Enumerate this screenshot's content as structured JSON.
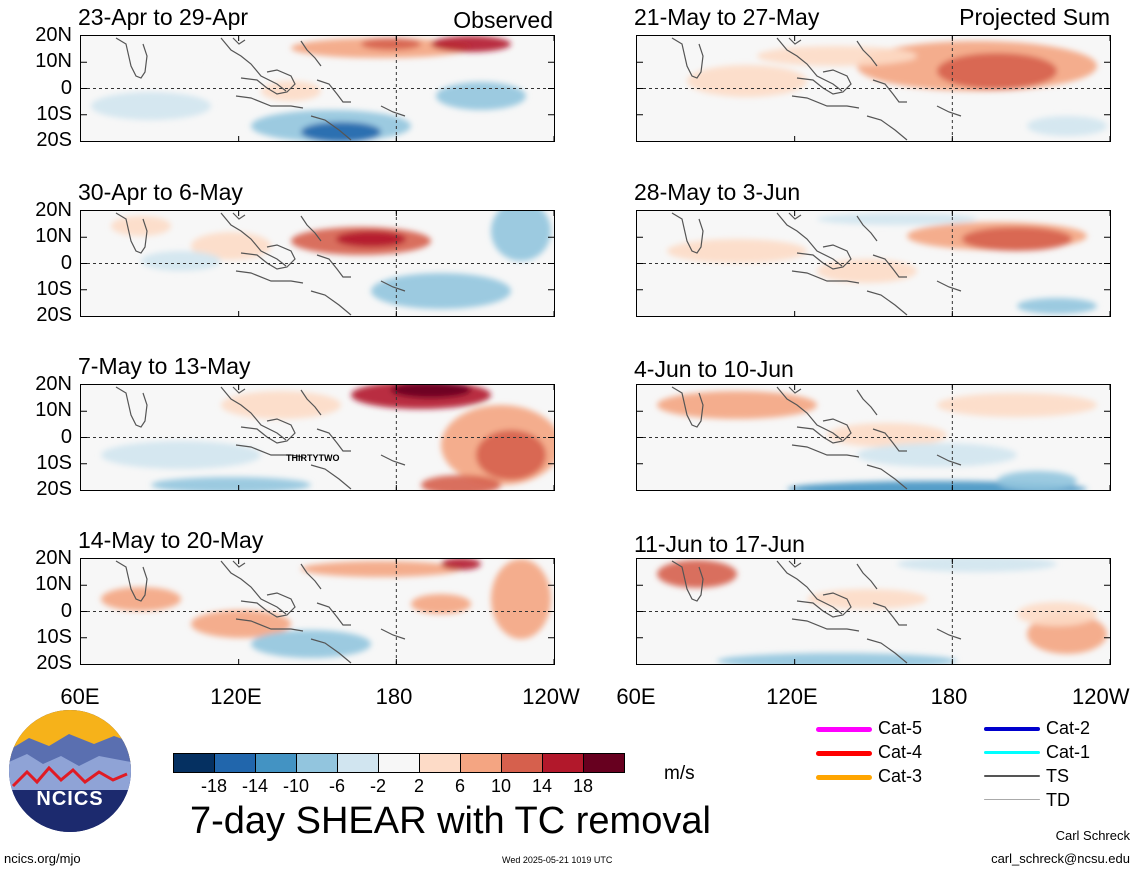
{
  "panels": [
    {
      "title": "23-Apr to 29-Apr",
      "tag": "Observed"
    },
    {
      "title": "30-Apr to 6-May",
      "tag": ""
    },
    {
      "title": "7-May to 13-May",
      "tag": "",
      "storm_label": "THIRTYTWO"
    },
    {
      "title": "14-May to 20-May",
      "tag": ""
    },
    {
      "title": "21-May to 27-May",
      "tag": "Projected Sum"
    },
    {
      "title": "28-May to 3-Jun",
      "tag": ""
    },
    {
      "title": "4-Jun to 10-Jun",
      "tag": ""
    },
    {
      "title": "11-Jun to 17-Jun",
      "tag": ""
    }
  ],
  "lat_labels": [
    "20N",
    "10N",
    "0",
    "10S",
    "20S"
  ],
  "lon_labels_left": [
    "60E",
    "120E",
    "180",
    "120W"
  ],
  "lon_labels_right": [
    "60E",
    "120E",
    "180",
    "120W"
  ],
  "chart_data": {
    "type": "heatmap",
    "variable": "7-day SHEAR with TC removal",
    "units": "m/s",
    "lat_range": [
      "20S",
      "20N"
    ],
    "lon_range": [
      "60E",
      "120W"
    ],
    "colorbar": {
      "ticks": [
        "-18",
        "-14",
        "-10",
        "-6",
        "-2",
        "2",
        "6",
        "10",
        "14",
        "18"
      ],
      "colors": [
        "#053061",
        "#2166ac",
        "#4393c3",
        "#92c5de",
        "#d1e5f0",
        "#f7f7f7",
        "#fddbc7",
        "#f4a582",
        "#d6604d",
        "#b2182b",
        "#67001f"
      ]
    }
  },
  "colorbar_units": "m/s",
  "main_title": "7-day SHEAR with TC removal",
  "legend": [
    {
      "label": "Cat-5",
      "color": "#ff00ff"
    },
    {
      "label": "Cat-4",
      "color": "#ff0000"
    },
    {
      "label": "Cat-3",
      "color": "#ffa500"
    },
    {
      "label": "Cat-2",
      "color": "#0000cd"
    },
    {
      "label": "Cat-1",
      "color": "#00ffff"
    },
    {
      "label": "TS",
      "color": "#555555"
    },
    {
      "label": "TD",
      "color": "#aaaaaa"
    }
  ],
  "logo_text": "NCICS",
  "footer": {
    "url": "ncics.org/mjo",
    "timestamp": "Wed 2025-05-21 1019 UTC",
    "author": "Carl Schreck",
    "email": "carl_schreck@ncsu.edu"
  }
}
